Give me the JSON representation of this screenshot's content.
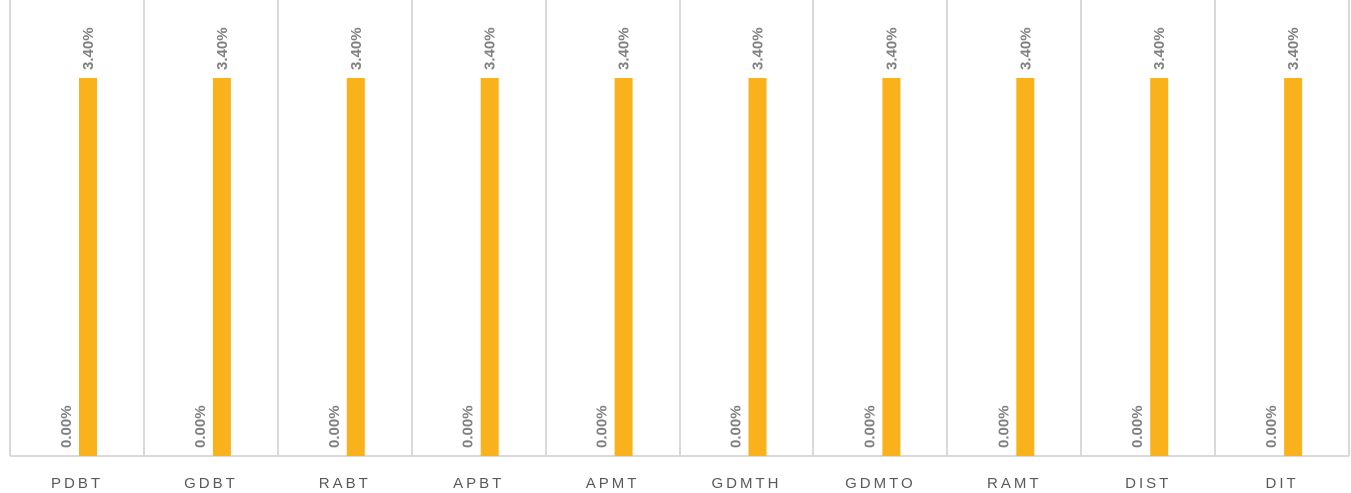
{
  "colors": {
    "series_1": "#5b9bd5",
    "series_2": "#f9b21b",
    "grid": "#d9d9d9",
    "data_label": "#808080",
    "tick_label": "#595959"
  },
  "chart_data": {
    "type": "bar",
    "categories": [
      "PDBT",
      "GDBT",
      "RABT",
      "APBT",
      "APMT",
      "GDMTH",
      "GDMTO",
      "RAMT",
      "DIST",
      "DIT"
    ],
    "series": [
      {
        "values": [
          0.0,
          0.0,
          0.0,
          0.0,
          0.0,
          0.0,
          0.0,
          0.0,
          0.0,
          0.0
        ],
        "labels": [
          "0.00%",
          "0.00%",
          "0.00%",
          "0.00%",
          "0.00%",
          "0.00%",
          "0.00%",
          "0.00%",
          "0.00%",
          "0.00%"
        ]
      },
      {
        "values": [
          3.4,
          3.4,
          3.4,
          3.4,
          3.4,
          3.4,
          3.4,
          3.4,
          3.4,
          3.4
        ],
        "labels": [
          "3.40%",
          "3.40%",
          "3.40%",
          "3.40%",
          "3.40%",
          "3.40%",
          "3.40%",
          "3.40%",
          "3.40%",
          "3.40%"
        ]
      }
    ],
    "ylim": [
      0,
      3.4
    ],
    "grid": "vertical category separators",
    "legend": "none"
  }
}
